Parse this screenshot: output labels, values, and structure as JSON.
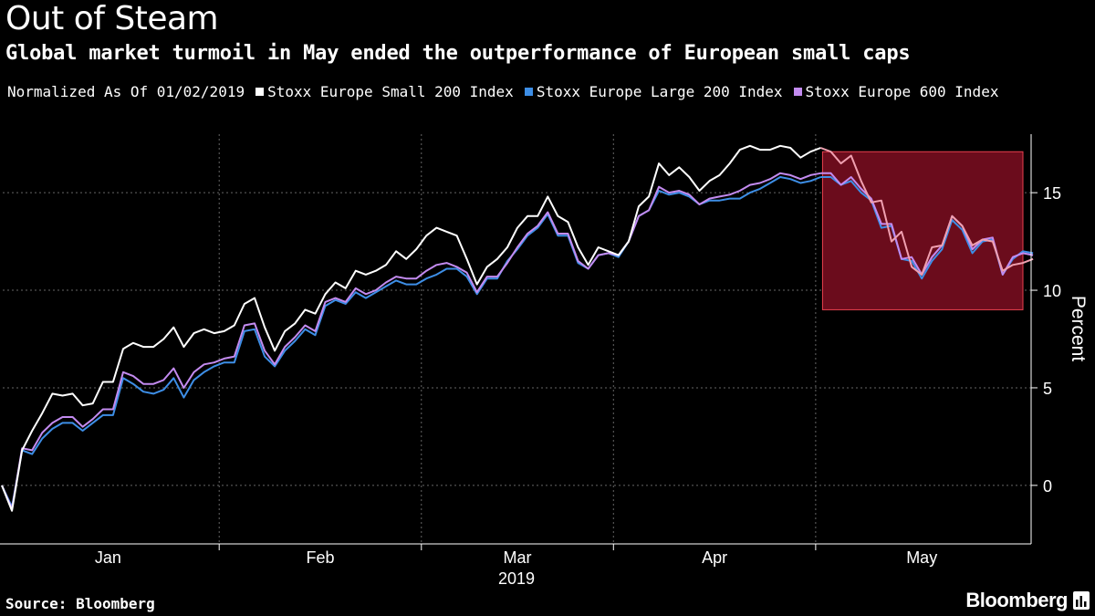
{
  "header": {
    "title": "Out of Steam",
    "subtitle": "Global market turmoil in May ended the outperformance of European small caps"
  },
  "legend": {
    "note": "Normalized As Of 01/02/2019"
  },
  "footer": {
    "source": "Source: Bloomberg",
    "brand": "Bloomberg"
  },
  "colors": {
    "small": "#ffffff",
    "large": "#3d8ee6",
    "stoxx600": "#c38bf0",
    "highlight_fill": "#6b0c1c",
    "highlight_stroke": "#e8404e",
    "highlight_line": "#f0a0b0",
    "grid": "#666666"
  },
  "chart_data": {
    "type": "line",
    "title": "Out of Steam",
    "subtitle": "Global market turmoil in May ended the outperformance of European small caps",
    "ylabel": "Percent",
    "xlabel": "2019",
    "ylim": [
      -3,
      18
    ],
    "yticks": [
      0,
      5,
      10,
      15
    ],
    "x_month_labels": [
      "Jan",
      "Feb",
      "Mar",
      "Apr",
      "May"
    ],
    "x_year_label": "2019",
    "trading_days": 102,
    "month_boundaries": [
      22,
      42,
      61,
      81
    ],
    "highlight": {
      "x_from": 81,
      "x_to": 101,
      "y_from": 9,
      "y_to": 17.1
    },
    "series": [
      {
        "name": "Stoxx Europe Small 200 Index",
        "key": "small",
        "values": [
          0,
          -1.3,
          1.8,
          2.8,
          3.7,
          4.7,
          4.6,
          4.7,
          4.1,
          4.2,
          5.3,
          5.3,
          7.0,
          7.3,
          7.1,
          7.1,
          7.5,
          8.1,
          7.1,
          7.8,
          8.0,
          7.8,
          7.9,
          8.2,
          9.3,
          9.6,
          8.1,
          6.9,
          7.9,
          8.3,
          9.0,
          8.8,
          9.8,
          10.4,
          10.1,
          11.0,
          10.8,
          11.0,
          11.3,
          12.0,
          11.6,
          12.1,
          12.8,
          13.2,
          13.0,
          12.8,
          11.6,
          10.3,
          11.2,
          11.6,
          12.2,
          13.2,
          13.8,
          13.8,
          14.8,
          13.8,
          13.5,
          12.2,
          11.3,
          12.2,
          12.0,
          11.8,
          12.5,
          14.3,
          14.8,
          16.5,
          15.9,
          16.3,
          15.8,
          15.1,
          15.6,
          15.9,
          16.5,
          17.2,
          17.4,
          17.2,
          17.2,
          17.4,
          17.3,
          16.8,
          17.1,
          17.3,
          17.1,
          16.5,
          16.9,
          15.6,
          14.5,
          14.6,
          12.5,
          13.0,
          11.2,
          10.8,
          12.2,
          12.3,
          13.8,
          13.3,
          12.3,
          12.6,
          12.5,
          11.0,
          11.3,
          11.4,
          11.6
        ]
      },
      {
        "name": "Stoxx Europe Large 200 Index",
        "key": "large",
        "values": [
          0,
          -1.1,
          1.8,
          1.6,
          2.4,
          2.9,
          3.2,
          3.2,
          2.8,
          3.2,
          3.6,
          3.6,
          5.5,
          5.2,
          4.8,
          4.7,
          4.9,
          5.5,
          4.5,
          5.4,
          5.8,
          6.1,
          6.3,
          6.3,
          7.9,
          8.0,
          6.6,
          6.1,
          6.9,
          7.4,
          8.0,
          7.7,
          9.2,
          9.5,
          9.3,
          9.9,
          9.6,
          9.9,
          10.2,
          10.5,
          10.3,
          10.3,
          10.6,
          10.8,
          11.1,
          11.1,
          10.7,
          9.8,
          10.6,
          10.6,
          11.5,
          12.1,
          12.8,
          13.2,
          13.9,
          12.8,
          12.8,
          11.4,
          11.1,
          11.8,
          11.9,
          11.7,
          12.5,
          13.8,
          14.1,
          15.1,
          14.9,
          15.0,
          14.8,
          14.4,
          14.6,
          14.6,
          14.7,
          14.7,
          15.0,
          15.2,
          15.5,
          15.8,
          15.7,
          15.5,
          15.6,
          15.8,
          15.8,
          15.4,
          15.6,
          15.0,
          14.6,
          13.2,
          13.3,
          11.6,
          11.5,
          10.6,
          11.5,
          12.1,
          13.6,
          13.1,
          11.9,
          12.5,
          12.6,
          10.8,
          11.6,
          12.0,
          11.9
        ]
      },
      {
        "name": "Stoxx Europe 600 Index",
        "key": "stoxx600",
        "values": [
          0,
          -1.2,
          1.9,
          1.8,
          2.7,
          3.2,
          3.5,
          3.5,
          3.0,
          3.4,
          3.9,
          3.9,
          5.8,
          5.6,
          5.2,
          5.2,
          5.4,
          6.0,
          5.0,
          5.8,
          6.2,
          6.3,
          6.5,
          6.6,
          8.2,
          8.3,
          6.9,
          6.2,
          7.1,
          7.6,
          8.2,
          7.9,
          9.4,
          9.6,
          9.4,
          10.1,
          9.8,
          10.0,
          10.4,
          10.7,
          10.6,
          10.6,
          11.0,
          11.3,
          11.4,
          11.2,
          10.9,
          9.9,
          10.7,
          10.7,
          11.4,
          12.2,
          12.9,
          13.3,
          14.0,
          12.9,
          12.9,
          11.5,
          11.1,
          11.8,
          11.9,
          11.8,
          12.5,
          13.8,
          14.1,
          15.3,
          15.0,
          15.1,
          14.9,
          14.4,
          14.7,
          14.8,
          14.9,
          15.1,
          15.4,
          15.5,
          15.7,
          16.0,
          15.9,
          15.7,
          15.9,
          16.0,
          16.0,
          15.4,
          15.8,
          15.2,
          14.7,
          13.4,
          13.4,
          11.6,
          11.7,
          10.8,
          11.7,
          12.3,
          13.8,
          13.3,
          12.1,
          12.6,
          12.7,
          10.8,
          11.7,
          11.9,
          11.8
        ]
      }
    ]
  }
}
